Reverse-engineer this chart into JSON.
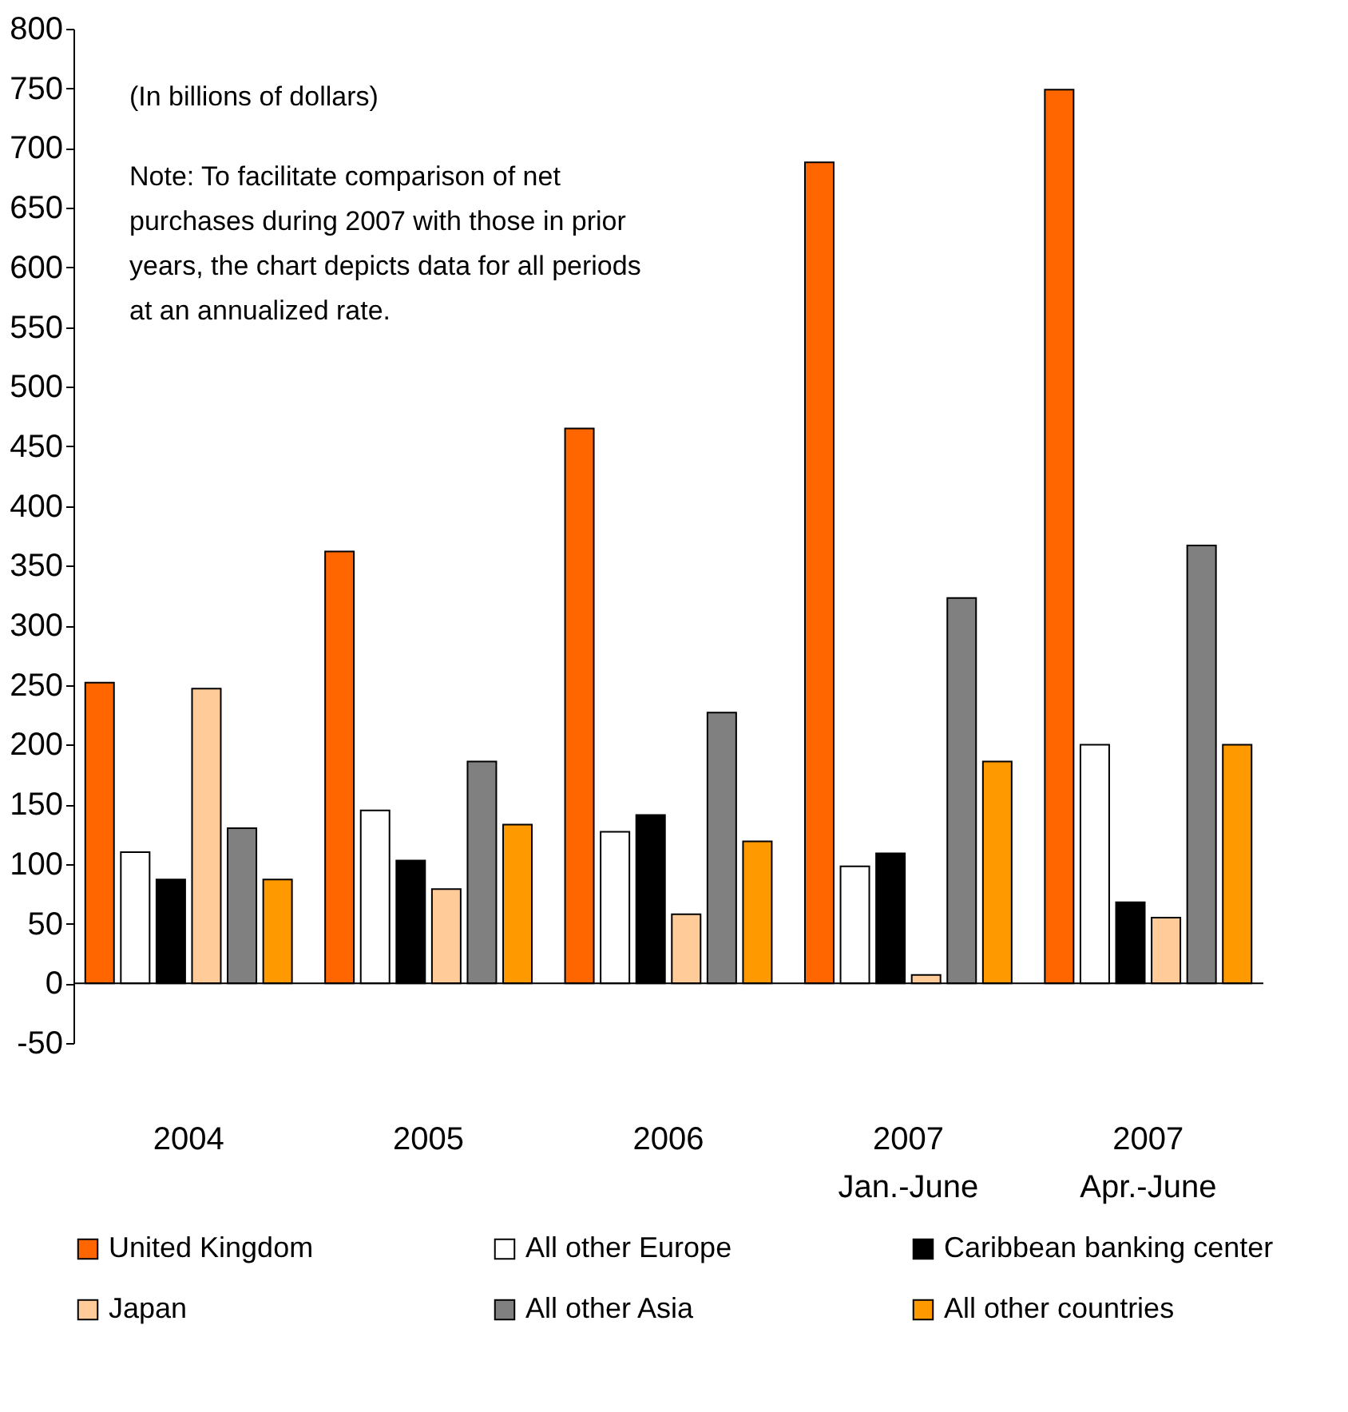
{
  "chart_data": {
    "type": "bar",
    "categories": [
      "2004",
      "2005",
      "2006",
      "2007\nJan.-June",
      "2007\nApr.-June"
    ],
    "series": [
      {
        "name": "United Kingdom",
        "color": "#ff6600",
        "values": [
          252,
          362,
          465,
          688,
          749
        ]
      },
      {
        "name": "All other Europe",
        "color": "#ffffff",
        "values": [
          110,
          145,
          127,
          98,
          200
        ]
      },
      {
        "name": "Caribbean banking center",
        "color": "#000000",
        "values": [
          87,
          103,
          141,
          109,
          68
        ]
      },
      {
        "name": "Japan",
        "color": "#ffcc99",
        "values": [
          247,
          79,
          58,
          7,
          55
        ]
      },
      {
        "name": "All other Asia",
        "color": "#808080",
        "values": [
          130,
          186,
          227,
          323,
          367
        ]
      },
      {
        "name": "All other countries",
        "color": "#ff9900",
        "values": [
          87,
          133,
          119,
          186,
          200
        ]
      }
    ],
    "ylim": [
      -50,
      800
    ],
    "yticks": [
      -50,
      0,
      50,
      100,
      150,
      200,
      250,
      300,
      350,
      400,
      450,
      500,
      550,
      600,
      650,
      700,
      750,
      800
    ],
    "grid": false,
    "legend": "bottom",
    "ref_lines": [
      {
        "axis": "y",
        "value": 0
      }
    ],
    "annotations": [
      "(In billions of dollars)",
      "Note: To facilitate comparison of net\npurchases during 2007 with those in prior\nyears, the chart depicts data for all periods\nat an annualized rate."
    ]
  }
}
